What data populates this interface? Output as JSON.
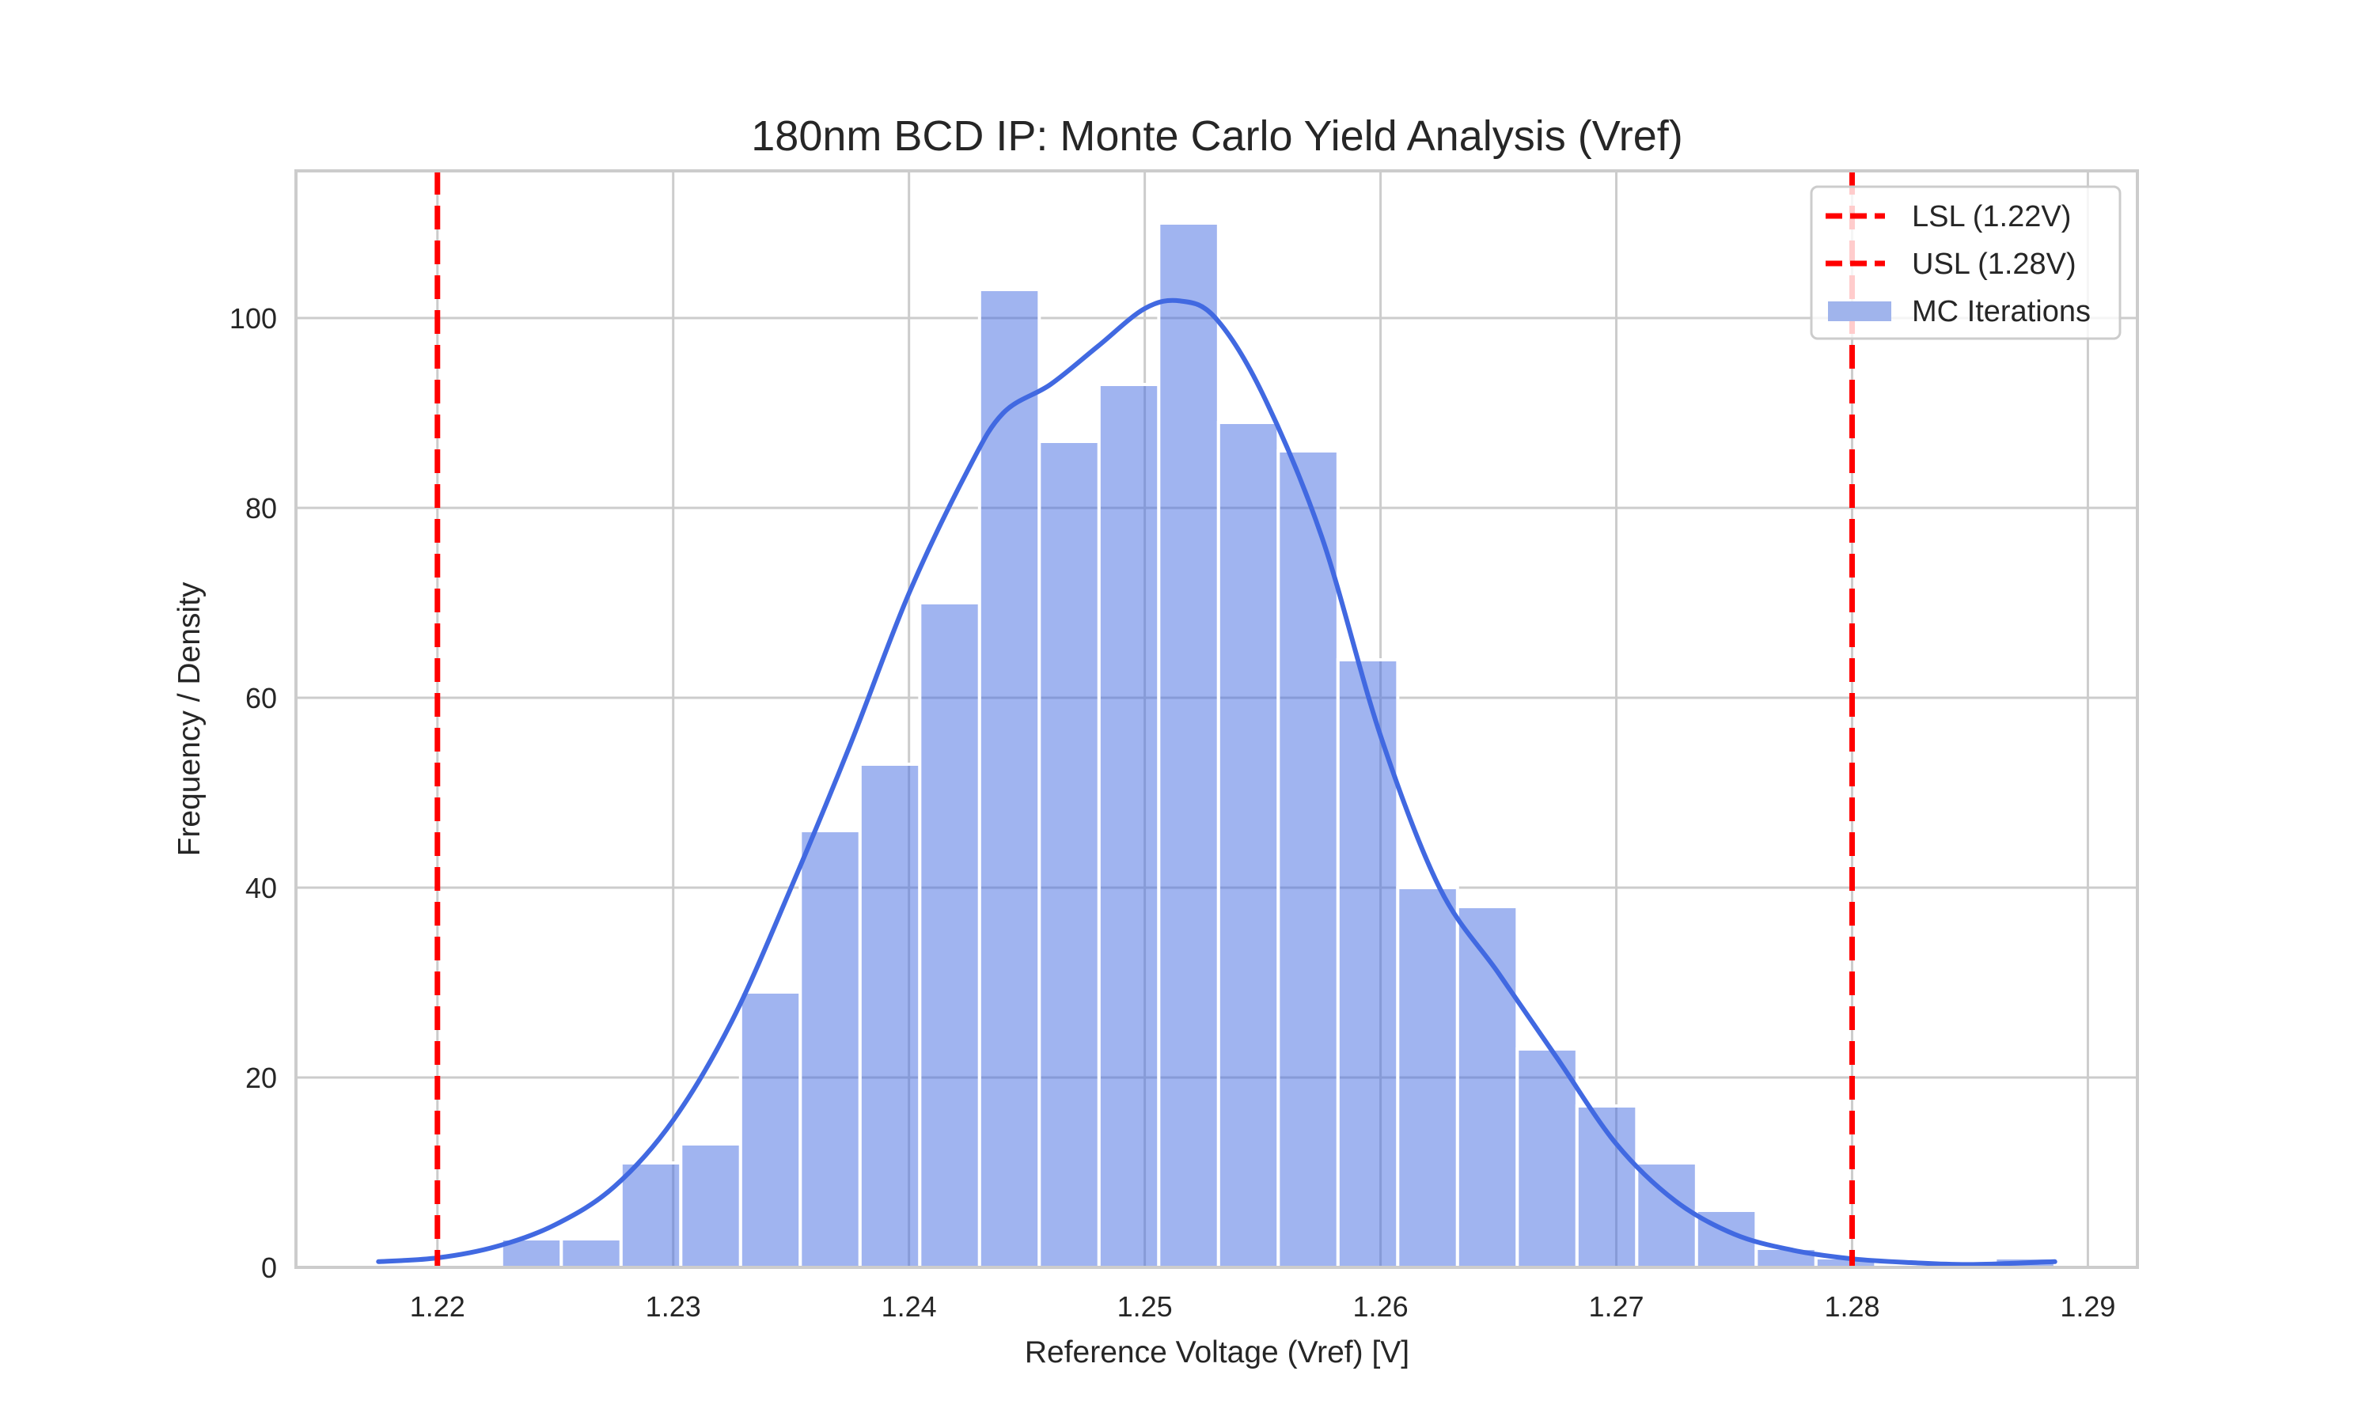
{
  "chart_data": {
    "type": "bar",
    "subtype": "histogram_with_kde",
    "title": "180nm BCD IP: Monte Carlo Yield Analysis (Vref)",
    "xlabel": "Reference Voltage (Vref) [V]",
    "ylabel": "Frequency / Density",
    "xlim": [
      1.214,
      1.2921
    ],
    "ylim": [
      0,
      115.5
    ],
    "grid": true,
    "legend_position": "upper right",
    "x_ticks": [
      1.22,
      1.23,
      1.24,
      1.25,
      1.26,
      1.27,
      1.28,
      1.29
    ],
    "x_tick_labels": [
      "1.22",
      "1.23",
      "1.24",
      "1.25",
      "1.26",
      "1.27",
      "1.28",
      "1.29"
    ],
    "y_ticks": [
      0,
      20,
      40,
      60,
      80,
      100
    ],
    "y_tick_labels": [
      "0",
      "20",
      "40",
      "60",
      "80",
      "100"
    ],
    "bins": {
      "start": 1.22272,
      "width": 0.002534,
      "counts": [
        3,
        3,
        11,
        13,
        29,
        46,
        53,
        70,
        103,
        87,
        93,
        110,
        89,
        86,
        64,
        40,
        38,
        23,
        17,
        11,
        6,
        2,
        1,
        0,
        0,
        1
      ]
    },
    "series": [
      {
        "name": "MC Iterations",
        "kind": "histogram",
        "color": "#4169e1",
        "fill_color": "#a0b4ec"
      },
      {
        "name": "KDE",
        "kind": "line",
        "color": "#4169e1",
        "x": [
          1.2175,
          1.22,
          1.2225,
          1.225,
          1.2275,
          1.23,
          1.2325,
          1.235,
          1.2375,
          1.24,
          1.2425,
          1.244,
          1.246,
          1.248,
          1.25,
          1.2515,
          1.253,
          1.255,
          1.2575,
          1.26,
          1.2625,
          1.265,
          1.2675,
          1.27,
          1.2725,
          1.275,
          1.2775,
          1.28,
          1.2825,
          1.285,
          1.2886
        ],
        "y": [
          0.6,
          1.0,
          2.2,
          4.5,
          8.5,
          15.5,
          26,
          40,
          55,
          71,
          84,
          90,
          93,
          97,
          101,
          101.8,
          100,
          92,
          77,
          56,
          40,
          31,
          22,
          13,
          7,
          3.5,
          1.8,
          0.9,
          0.5,
          0.3,
          0.6
        ]
      }
    ],
    "reference_lines": [
      {
        "name": "LSL (1.22V)",
        "x": 1.22,
        "color": "#ff0000",
        "style": "dashed"
      },
      {
        "name": "USL (1.28V)",
        "x": 1.28,
        "color": "#ff0000",
        "style": "dashed"
      }
    ],
    "legend": [
      {
        "label": "LSL (1.22V)",
        "kind": "dashed-line",
        "color": "#ff0000"
      },
      {
        "label": "USL (1.28V)",
        "kind": "dashed-line",
        "color": "#ff0000"
      },
      {
        "label": "MC Iterations",
        "kind": "patch",
        "color": "#a0b4ec"
      }
    ]
  }
}
